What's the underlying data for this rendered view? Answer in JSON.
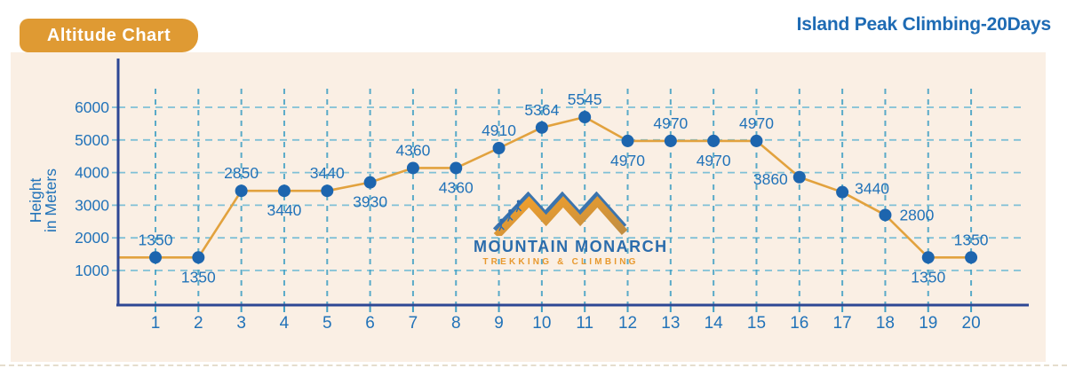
{
  "badge": {
    "label": "Altitude Chart",
    "color": "#DF9A33"
  },
  "title": {
    "text": "Island Peak Climbing-20Days",
    "color": "#1E6BB4"
  },
  "logo": {
    "name": "MOUNTAIN MONARCH",
    "tagline": "TREKKING & CLIMBING"
  },
  "colors": {
    "panel": "#FAEFE4",
    "axis": "#2D4795",
    "grid_vertical": "#3E9FC4",
    "grid_horizontal": "#7FC0D6",
    "line": "#E2A23E",
    "point": "#1D65AE",
    "label": "#2273B9",
    "badge_orange": "#DF9A33",
    "logo_blue": "#2B6CAC",
    "logo_orange": "#E8992F"
  },
  "chart_data": {
    "type": "line",
    "title": "Altitude Chart",
    "subtitle": "Island Peak Climbing-20Days",
    "xlabel": "",
    "ylabel": "Height in Meters",
    "ylabel_lines": [
      "Height",
      "in Meters"
    ],
    "yticks": [
      1000,
      2000,
      3000,
      4000,
      5000,
      6000
    ],
    "ylim": [
      0,
      6500
    ],
    "grid": "dashed",
    "legend": false,
    "x": [
      1,
      2,
      3,
      4,
      5,
      6,
      7,
      8,
      9,
      10,
      11,
      12,
      13,
      14,
      15,
      16,
      17,
      18,
      19,
      20
    ],
    "values": [
      1350,
      1350,
      2850,
      3440,
      3440,
      3930,
      4360,
      4360,
      4910,
      5364,
      5545,
      4970,
      4970,
      4970,
      4970,
      3860,
      3440,
      2800,
      1350,
      1350
    ],
    "points": [
      {
        "day": 1,
        "value": 1350,
        "plot": 1400,
        "label_pos": "above"
      },
      {
        "day": 2,
        "value": 1350,
        "plot": 1400,
        "label_pos": "below"
      },
      {
        "day": 3,
        "value": 2850,
        "plot": 3440,
        "label_pos": "above"
      },
      {
        "day": 4,
        "value": 3440,
        "plot": 3440,
        "label_pos": "below"
      },
      {
        "day": 5,
        "value": 3440,
        "plot": 3440,
        "label_pos": "above"
      },
      {
        "day": 6,
        "value": 3930,
        "plot": 3700,
        "label_pos": "below"
      },
      {
        "day": 7,
        "value": 4360,
        "plot": 4140,
        "label_pos": "above"
      },
      {
        "day": 8,
        "value": 4360,
        "plot": 4140,
        "label_pos": "below"
      },
      {
        "day": 9,
        "value": 4910,
        "plot": 4750,
        "label_pos": "above"
      },
      {
        "day": 10,
        "value": 5364,
        "plot": 5380,
        "label_pos": "above"
      },
      {
        "day": 11,
        "value": 5545,
        "plot": 5700,
        "label_pos": "above"
      },
      {
        "day": 12,
        "value": 4970,
        "plot": 4970,
        "label_pos": "below"
      },
      {
        "day": 13,
        "value": 4970,
        "plot": 4970,
        "label_pos": "above"
      },
      {
        "day": 14,
        "value": 4970,
        "plot": 4970,
        "label_pos": "below"
      },
      {
        "day": 15,
        "value": 4970,
        "plot": 4970,
        "label_pos": "above"
      },
      {
        "day": 16,
        "value": 3860,
        "plot": 3860,
        "label_pos": "left"
      },
      {
        "day": 17,
        "value": 3440,
        "plot": 3400,
        "label_pos": "right-above"
      },
      {
        "day": 18,
        "value": 2800,
        "plot": 2700,
        "label_pos": "right"
      },
      {
        "day": 19,
        "value": 1350,
        "plot": 1400,
        "label_pos": "below"
      },
      {
        "day": 20,
        "value": 1350,
        "plot": 1400,
        "label_pos": "above"
      }
    ]
  }
}
